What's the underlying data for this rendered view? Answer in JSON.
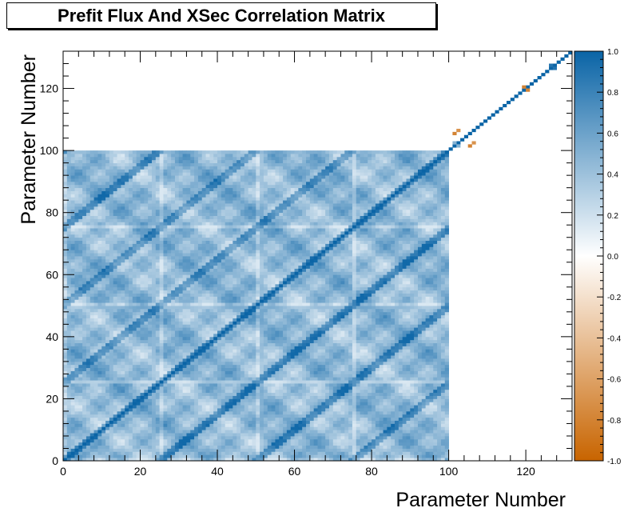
{
  "chart_data": {
    "type": "heatmap",
    "title": "Prefit Flux And XSec Correlation Matrix",
    "xlabel": "Parameter Number",
    "ylabel": "Parameter Number",
    "xlim": [
      0,
      132
    ],
    "ylim": [
      0,
      132
    ],
    "x_ticks": [
      0,
      20,
      40,
      60,
      80,
      100,
      120
    ],
    "y_ticks": [
      0,
      20,
      40,
      60,
      80,
      100,
      120
    ],
    "n_params": 132,
    "flux_block_size": 100,
    "colorbar": {
      "range": [
        -1.0,
        1.0
      ],
      "ticks": [
        "-1.0",
        "-0.8",
        "-0.6",
        "-0.4",
        "-0.2",
        "0.0",
        "0.2",
        "0.4",
        "0.6",
        "0.8",
        "1.0"
      ],
      "low_color": "#c86400",
      "mid_color": "#ffffff",
      "high_color": "#0a64a6"
    },
    "flux_block_description_values": {
      "diagonal": 1.0,
      "off_diagonal_typical": [
        0.3,
        0.6
      ]
    },
    "xsec_diagonal": {
      "start": 100,
      "end": 132,
      "value": 1.0
    },
    "negative_cells": [
      {
        "i": 101,
        "j": 105,
        "value": -0.8
      },
      {
        "i": 105,
        "j": 101,
        "value": -0.8
      },
      {
        "i": 102,
        "j": 106,
        "value": -0.7
      },
      {
        "i": 106,
        "j": 102,
        "value": -0.7
      },
      {
        "i": 119,
        "j": 120,
        "value": -0.8
      },
      {
        "i": 120,
        "j": 119,
        "value": -0.8
      }
    ],
    "extra_positive_cells": [
      {
        "i": 101,
        "j": 102,
        "value": 0.5
      },
      {
        "i": 102,
        "j": 101,
        "value": 0.5
      },
      {
        "i": 126,
        "j": 127,
        "value": 0.9
      },
      {
        "i": 127,
        "j": 126,
        "value": 0.9
      }
    ]
  }
}
